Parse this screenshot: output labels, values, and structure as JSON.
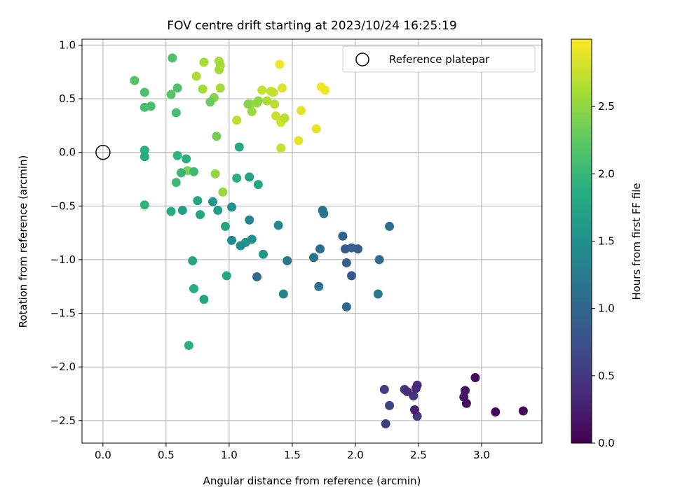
{
  "chart_data": {
    "type": "scatter",
    "title": "FOV centre drift starting at 2023/10/24 16:25:19",
    "xlabel": "Angular distance from reference (arcmin)",
    "ylabel": "Rotation from reference (arcmin)",
    "xlim": [
      -0.166,
      3.478
    ],
    "ylim": [
      -2.71,
      1.055
    ],
    "xticks": [
      0.0,
      0.5,
      1.0,
      1.5,
      2.0,
      2.5,
      3.0
    ],
    "xtick_labels": [
      "0.0",
      "0.5",
      "1.0",
      "1.5",
      "2.0",
      "2.5",
      "3.0"
    ],
    "yticks": [
      -2.5,
      -2.0,
      -1.5,
      -1.0,
      -0.5,
      0.0,
      0.5,
      1.0
    ],
    "ytick_labels": [
      "−2.5",
      "−2.0",
      "−1.5",
      "−1.0",
      "−0.5",
      "0.0",
      "0.5",
      "1.0"
    ],
    "grid": true,
    "legend": {
      "position": "top-right",
      "entries": [
        "Reference platepar"
      ]
    },
    "reference_point": {
      "x": 0.0,
      "y": 0.0
    },
    "colorbar": {
      "label": "Hours from first FF file",
      "colormap": "viridis",
      "range": [
        0.0,
        3.0
      ],
      "ticks": [
        0.0,
        0.5,
        1.0,
        1.5,
        2.0,
        2.5
      ],
      "tick_labels": [
        "0.0",
        "0.5",
        "1.0",
        "1.5",
        "2.0",
        "2.5"
      ]
    },
    "series": [
      {
        "x": [
          0.25,
          0.55,
          0.33,
          0.33,
          0.38,
          0.54,
          0.59,
          0.58,
          0.33,
          0.33,
          0.8,
          0.92,
          0.93,
          0.92,
          0.74,
          0.79,
          0.85,
          0.88,
          0.93,
          0.9,
          1.06,
          1.15,
          1.18,
          1.17,
          1.23,
          1.26,
          1.22,
          1.3,
          1.33,
          1.35,
          1.36,
          1.37,
          1.41,
          1.4,
          1.42,
          1.44,
          1.41,
          1.57,
          1.55,
          1.69,
          1.73,
          1.76,
          0.66,
          0.67,
          0.72,
          0.59,
          0.62,
          0.58,
          0.89,
          0.95,
          0.33,
          0.54,
          0.63,
          0.75,
          0.87,
          0.91,
          0.77,
          1.02,
          1.08,
          1.16,
          1.23,
          1.16,
          1.06,
          0.97,
          1.02,
          1.09,
          1.13,
          1.18,
          1.27,
          1.39,
          0.71,
          0.72,
          0.8,
          0.98,
          0.68,
          1.16,
          1.22,
          1.43,
          1.46,
          1.67,
          1.75,
          1.74,
          1.72,
          1.71,
          1.9,
          1.93,
          1.97,
          2.02,
          1.92,
          1.97,
          2.27,
          2.19,
          2.18,
          1.93,
          2.23,
          2.27,
          2.24,
          2.39,
          2.41,
          2.46,
          2.48,
          2.49,
          2.47,
          2.49,
          2.86,
          2.87,
          2.88,
          2.95,
          3.11,
          3.33
        ],
        "y": [
          0.67,
          0.88,
          0.56,
          0.42,
          0.43,
          0.54,
          0.6,
          0.37,
          0.02,
          -0.04,
          0.84,
          0.85,
          0.81,
          0.77,
          0.71,
          0.59,
          0.47,
          0.51,
          0.6,
          0.15,
          0.3,
          0.45,
          0.38,
          0.45,
          0.48,
          0.58,
          0.46,
          0.48,
          0.57,
          0.56,
          0.45,
          0.34,
          0.28,
          0.82,
          0.6,
          0.32,
          0.04,
          0.39,
          0.11,
          0.22,
          0.61,
          0.58,
          -0.06,
          -0.17,
          -0.18,
          -0.03,
          -0.19,
          -0.28,
          -0.2,
          -0.37,
          -0.49,
          -0.55,
          -0.54,
          -0.45,
          -0.46,
          -0.54,
          -0.58,
          -0.51,
          0.05,
          -0.23,
          -0.3,
          -0.23,
          -0.24,
          -0.69,
          -0.82,
          -0.87,
          -0.84,
          -0.81,
          -0.95,
          -0.68,
          -1.01,
          -1.27,
          -1.37,
          -1.15,
          -1.8,
          -0.63,
          -1.16,
          -1.32,
          -1.01,
          -0.98,
          -0.57,
          -0.54,
          -0.9,
          -1.25,
          -0.78,
          -1.03,
          -0.89,
          -0.9,
          -0.9,
          -1.15,
          -0.69,
          -1.0,
          -1.32,
          -1.44,
          -2.21,
          -2.36,
          -2.53,
          -2.21,
          -2.23,
          -2.27,
          -2.2,
          -2.17,
          -2.4,
          -2.46,
          -2.28,
          -2.22,
          -2.34,
          -2.1,
          -2.42,
          -2.41
        ],
        "c": [
          2.2,
          2.15,
          2.15,
          2.1,
          2.1,
          2.2,
          2.15,
          2.1,
          1.9,
          1.85,
          2.6,
          2.6,
          2.6,
          2.6,
          2.65,
          2.6,
          2.3,
          2.45,
          2.6,
          2.35,
          2.7,
          2.45,
          2.55,
          2.55,
          2.5,
          2.75,
          2.55,
          2.65,
          2.75,
          2.75,
          2.7,
          2.75,
          2.8,
          2.95,
          2.85,
          2.7,
          2.75,
          2.9,
          2.9,
          2.9,
          2.95,
          2.95,
          1.9,
          2.4,
          2.05,
          1.95,
          2.0,
          2.05,
          2.5,
          2.55,
          1.95,
          1.85,
          1.7,
          1.75,
          1.6,
          1.65,
          1.8,
          1.55,
          1.8,
          1.75,
          1.8,
          1.9,
          1.9,
          1.75,
          1.45,
          1.5,
          1.55,
          1.5,
          1.6,
          1.45,
          1.8,
          1.85,
          1.8,
          1.8,
          1.9,
          1.35,
          1.05,
          1.35,
          1.2,
          1.1,
          1.2,
          1.15,
          1.1,
          1.15,
          0.95,
          0.9,
          0.95,
          0.85,
          0.85,
          0.85,
          1.1,
          1.05,
          1.2,
          1.0,
          0.55,
          0.65,
          0.55,
          0.5,
          0.4,
          0.45,
          0.35,
          0.4,
          0.25,
          0.55,
          0.15,
          0.15,
          0.1,
          0.1,
          0.05,
          0.05
        ]
      }
    ]
  }
}
